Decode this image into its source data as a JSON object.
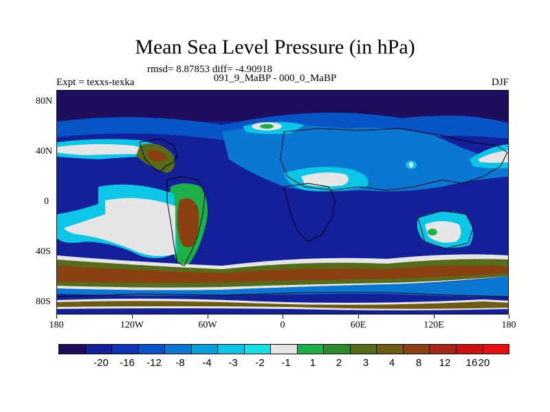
{
  "title": "Mean Sea Level Pressure (in hPa)",
  "stats": "rmsd= 8.87853 diff= -4.90918",
  "subtitle": "091_9_MaBP - 000_0_MaBP",
  "experiment": "Expt = texxs-texka",
  "season": "DJF",
  "lat_labels": [
    "80N",
    "40N",
    "0",
    "40S",
    "80S"
  ],
  "lon_labels": [
    "180",
    "120W",
    "60W",
    "0",
    "60E",
    "120E",
    "180"
  ],
  "colorbar": {
    "labels": [
      "-20",
      "-16",
      "-12",
      "-8",
      "-4",
      "-3",
      "-2",
      "-1",
      "1",
      "2",
      "3",
      "4",
      "8",
      "12",
      "16",
      "20"
    ],
    "colors": [
      "#1e0c5c",
      "#141f9a",
      "#0a34b4",
      "#0754c6",
      "#0a78d2",
      "#06a0dc",
      "#0bc6e6",
      "#14dfe4",
      "#e6e6e6",
      "#1eb048",
      "#2c8a2a",
      "#566c1a",
      "#6e5a10",
      "#8a4010",
      "#a62414",
      "#cc1010",
      "#e60e0e"
    ]
  },
  "map": {
    "fields": {
      "deep_ocean": "#141f9a",
      "polar_low": "#1e0c5c",
      "mid_blue": "#0754c6",
      "light_blue": "#0a78d2",
      "cyan": "#0bc6e6",
      "near_zero": "#e6e6e6",
      "green": "#1eb048",
      "olive": "#566c1a",
      "brown": "#6e5a10",
      "high": "#8a4010"
    }
  }
}
